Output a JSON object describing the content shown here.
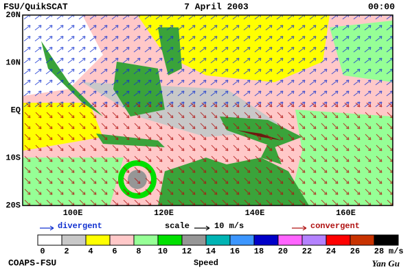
{
  "header": {
    "source": "FSU/QuikSCAT",
    "date": "7 April 2003",
    "time": "00:00"
  },
  "map": {
    "lat_labels": [
      "20N",
      "10N",
      "EQ",
      "10S",
      "20S"
    ],
    "lon_labels": [
      "100E",
      "120E",
      "140E",
      "160E"
    ]
  },
  "legend": {
    "divergent": "divergent",
    "scale": "scale",
    "scale_value": "10 m/s",
    "convergent": "convergent"
  },
  "colorbar": {
    "ticks": [
      0,
      2,
      4,
      6,
      8,
      10,
      12,
      14,
      16,
      18,
      20,
      22,
      24,
      26,
      28
    ],
    "unit": "m/s",
    "label": "Speed",
    "colors": [
      "#ffffff",
      "#c8c8c8",
      "#ffff00",
      "#ffc8c8",
      "#96ff96",
      "#00e000",
      "#969696",
      "#00b4b4",
      "#3c96ff",
      "#0000c8",
      "#ff64ff",
      "#b482ff",
      "#ff0000",
      "#c83200",
      "#000000"
    ]
  },
  "footer": {
    "credit": "COAPS-FSU",
    "author": "Yan Gu"
  }
}
